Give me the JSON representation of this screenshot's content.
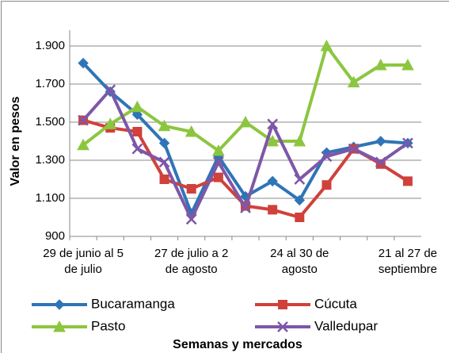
{
  "chart_data": {
    "type": "line",
    "y_label": "Valor en pesos",
    "x_label": "Semanas y mercados",
    "categories": [
      "29 de junio al 5 de julio",
      null,
      null,
      null,
      "27 de julio a 2 de agosto",
      null,
      null,
      null,
      "24 al 30 de agosto",
      null,
      null,
      null,
      "21 al 27 de septiembre"
    ],
    "series": [
      {
        "name": "Bucaramanga",
        "color": "#2e75b6",
        "marker": "diamond",
        "values": [
          1810,
          1660,
          1540,
          1390,
          1020,
          1320,
          1110,
          1190,
          1090,
          1340,
          1370,
          1400,
          1390
        ]
      },
      {
        "name": "Cúcuta",
        "color": "#d0413b",
        "marker": "square",
        "values": [
          1510,
          1470,
          1450,
          1200,
          1150,
          1210,
          1060,
          1040,
          1000,
          1170,
          1360,
          1280,
          1190
        ]
      },
      {
        "name": "Pasto",
        "color": "#8cc63f",
        "marker": "triangle",
        "values": [
          1380,
          1490,
          1580,
          1480,
          1450,
          1350,
          1500,
          1400,
          1400,
          1900,
          1710,
          1800,
          1800
        ]
      },
      {
        "name": "Valledupar",
        "color": "#7e57a8",
        "marker": "x",
        "values": [
          1510,
          1670,
          1360,
          1290,
          990,
          1290,
          1050,
          1490,
          1200,
          1320,
          1360,
          1290,
          1390
        ]
      }
    ],
    "ylim": [
      900,
      1900
    ],
    "yticks": [
      900,
      {
        "value": 1100,
        "label": "1.100"
      },
      {
        "value": 1300,
        "label": "1.300"
      },
      {
        "value": 1500,
        "label": "1.500"
      },
      {
        "value": 1700,
        "label": "1.700"
      },
      {
        "value": 1900,
        "label": "1.900"
      }
    ],
    "grid": true
  }
}
